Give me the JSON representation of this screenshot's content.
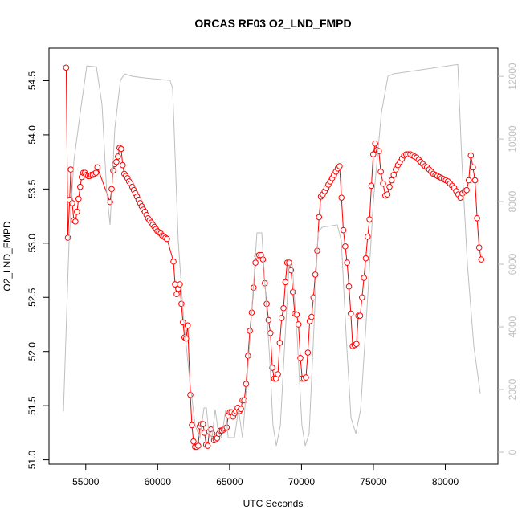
{
  "chart_data": {
    "type": "line",
    "title": "ORCAS RF03 O2_LND_FMPD",
    "xlabel": "UTC Seconds",
    "ylabel": "O2_LND_FMPD",
    "xlim": [
      52444,
      83656
    ],
    "ylim": [
      50.96,
      54.8
    ],
    "y2lim": [
      -385,
      12900
    ],
    "xticks": [
      55000,
      60000,
      65000,
      70000,
      75000,
      80000
    ],
    "yticks": [
      {
        "value": 51,
        "label": "51.0"
      },
      51.5,
      {
        "value": 52,
        "label": "52.0"
      },
      52.5,
      {
        "value": 53,
        "label": "53.0"
      },
      53.5,
      {
        "value": 54,
        "label": "54.0"
      },
      54.5
    ],
    "y2ticks": [
      0,
      2000,
      4000,
      6000,
      8000,
      10000,
      12000
    ],
    "series": [
      {
        "color": "#ff0000",
        "x": [
          53640,
          53760,
          53880,
          53960,
          54060,
          54170,
          54280,
          54390,
          54500,
          54610,
          54720,
          54830,
          54940,
          55050,
          55160,
          55270,
          55380,
          55490,
          55600,
          55710,
          55810,
          56690,
          56800,
          56910,
          57020,
          57130,
          57240,
          57350,
          57460,
          57570,
          57680,
          57790,
          57900,
          58010,
          58120,
          58230,
          58340,
          58450,
          58560,
          58670,
          58780,
          58890,
          59000,
          59110,
          59220,
          59330,
          59440,
          59550,
          59660,
          59770,
          59880,
          59990,
          60100,
          60210,
          60320,
          60430,
          60540,
          60650,
          61100,
          61210,
          61320,
          61430,
          61540,
          61650,
          61760,
          61870,
          61980,
          62090,
          62270,
          62380,
          62490,
          62600,
          62710,
          62820,
          62930,
          63040,
          63150,
          63260,
          63370,
          63480,
          63590,
          63700,
          63810,
          63920,
          64030,
          64140,
          64250,
          64360,
          64470,
          64580,
          64690,
          64800,
          64910,
          65020,
          65130,
          65240,
          65350,
          65460,
          65570,
          65680,
          65790,
          65900,
          66020,
          66150,
          66280,
          66410,
          66540,
          66670,
          66800,
          66930,
          67060,
          67190,
          67320,
          67450,
          67580,
          67710,
          67840,
          67970,
          68100,
          68230,
          68360,
          68490,
          68620,
          68750,
          68880,
          69010,
          69140,
          69270,
          69400,
          69530,
          69660,
          69790,
          69920,
          70050,
          70180,
          70310,
          70440,
          70570,
          70700,
          70830,
          70960,
          71090,
          71220,
          71350,
          71480,
          71610,
          71740,
          71870,
          72000,
          72130,
          72260,
          72390,
          72520,
          72650,
          72780,
          72910,
          73040,
          73170,
          73300,
          73430,
          73560,
          73690,
          73820,
          73950,
          74080,
          74210,
          74340,
          74470,
          74600,
          74730,
          74860,
          74990,
          75120,
          75250,
          75380,
          75510,
          75670,
          75830,
          75975,
          76120,
          76265,
          76410,
          76555,
          76700,
          76845,
          76990,
          77135,
          77280,
          77425,
          77570,
          77715,
          77860,
          78005,
          78150,
          78295,
          78440,
          78585,
          78730,
          78875,
          79020,
          79165,
          79310,
          79455,
          79600,
          79745,
          79890,
          80035,
          80180,
          80325,
          80470,
          80615,
          80760,
          80905,
          81050,
          81195,
          81340,
          81485,
          81630,
          81775,
          81920,
          82065,
          82210,
          82355,
          82500
        ],
        "values": [
          54.62,
          53.05,
          53.4,
          53.68,
          53.37,
          53.21,
          53.2,
          53.29,
          53.41,
          53.52,
          53.61,
          53.65,
          53.65,
          53.63,
          53.62,
          53.62,
          53.63,
          53.63,
          53.64,
          53.65,
          53.7,
          53.38,
          53.5,
          53.67,
          53.73,
          53.75,
          53.8,
          53.88,
          53.87,
          53.72,
          53.64,
          53.62,
          53.6,
          53.57,
          53.55,
          53.52,
          53.49,
          53.46,
          53.43,
          53.4,
          53.37,
          53.34,
          53.31,
          53.29,
          53.26,
          53.23,
          53.21,
          53.19,
          53.17,
          53.15,
          53.13,
          53.11,
          53.1,
          53.09,
          53.07,
          53.06,
          53.05,
          53.04,
          52.83,
          52.62,
          52.53,
          52.58,
          52.62,
          52.44,
          52.27,
          52.13,
          52.12,
          52.24,
          51.6,
          51.32,
          51.17,
          51.12,
          51.12,
          51.13,
          51.31,
          51.33,
          51.33,
          51.25,
          51.14,
          51.13,
          51.26,
          51.28,
          51.24,
          51.18,
          51.19,
          51.2,
          51.24,
          51.27,
          51.27,
          51.28,
          51.29,
          51.3,
          51.41,
          51.44,
          51.44,
          51.4,
          51.43,
          51.45,
          51.48,
          51.45,
          51.47,
          51.55,
          51.55,
          51.7,
          51.96,
          52.19,
          52.36,
          52.59,
          52.82,
          52.88,
          52.89,
          52.89,
          52.85,
          52.63,
          52.44,
          52.29,
          52.17,
          51.85,
          51.75,
          51.75,
          51.79,
          52.08,
          52.31,
          52.4,
          52.64,
          52.82,
          52.82,
          52.75,
          52.55,
          52.35,
          52.34,
          52.25,
          51.94,
          51.75,
          51.75,
          51.76,
          51.99,
          52.28,
          52.32,
          52.5,
          52.71,
          52.93,
          53.24,
          53.43,
          53.45,
          53.48,
          53.51,
          53.54,
          53.57,
          53.6,
          53.63,
          53.66,
          53.69,
          53.71,
          53.42,
          53.12,
          52.97,
          52.82,
          52.6,
          52.35,
          52.05,
          52.06,
          52.07,
          52.33,
          52.33,
          52.5,
          52.68,
          52.86,
          53.06,
          53.22,
          53.53,
          53.82,
          53.92,
          53.86,
          53.85,
          53.66,
          53.55,
          53.44,
          53.45,
          53.52,
          53.58,
          53.63,
          53.68,
          53.72,
          53.75,
          53.78,
          53.81,
          53.82,
          53.82,
          53.82,
          53.81,
          53.8,
          53.79,
          53.77,
          53.75,
          53.73,
          53.71,
          53.7,
          53.68,
          53.66,
          53.64,
          53.63,
          53.62,
          53.61,
          53.6,
          53.59,
          53.58,
          53.57,
          53.55,
          53.53,
          53.51,
          53.48,
          53.45,
          53.42,
          53.46,
          53.48,
          53.49,
          53.58,
          53.81,
          53.7,
          53.58,
          53.23,
          52.96,
          52.85
        ]
      },
      {
        "color": "#bebebe",
        "axis": "y2",
        "x": [
          53450,
          53840,
          54175,
          54620,
          55070,
          55740,
          56130,
          56460,
          56690,
          57020,
          57410,
          57690,
          58250,
          59090,
          60870,
          61040,
          61430,
          61820,
          62210,
          62610,
          62940,
          63220,
          63390,
          63560,
          63780,
          64000,
          64230,
          64450,
          64730,
          64900,
          65340,
          65620,
          65900,
          66230,
          66570,
          66900,
          67240,
          67520,
          67800,
          68020,
          68250,
          68530,
          68860,
          69140,
          69360,
          69700,
          70030,
          70260,
          70530,
          70810,
          71150,
          71430,
          72490,
          72770,
          73110,
          73440,
          73780,
          74110,
          74500,
          75000,
          75560,
          76010,
          76400,
          80870,
          81150,
          81540,
          81980,
          82430
        ],
        "values": [
          1300,
          6740,
          9300,
          10850,
          12330,
          12300,
          11100,
          8280,
          7260,
          10330,
          11870,
          12080,
          12000,
          11950,
          11870,
          11610,
          6740,
          4180,
          2380,
          850,
          460,
          1410,
          1410,
          590,
          460,
          1360,
          590,
          460,
          1360,
          460,
          460,
          1360,
          460,
          2380,
          4690,
          7000,
          7000,
          4950,
          2900,
          850,
          200,
          850,
          3670,
          5970,
          5970,
          3670,
          850,
          200,
          590,
          3400,
          7000,
          7180,
          7260,
          6740,
          3670,
          1100,
          590,
          1360,
          4180,
          8030,
          10850,
          12000,
          12080,
          12380,
          9300,
          5970,
          3400,
          1870
        ]
      }
    ]
  }
}
